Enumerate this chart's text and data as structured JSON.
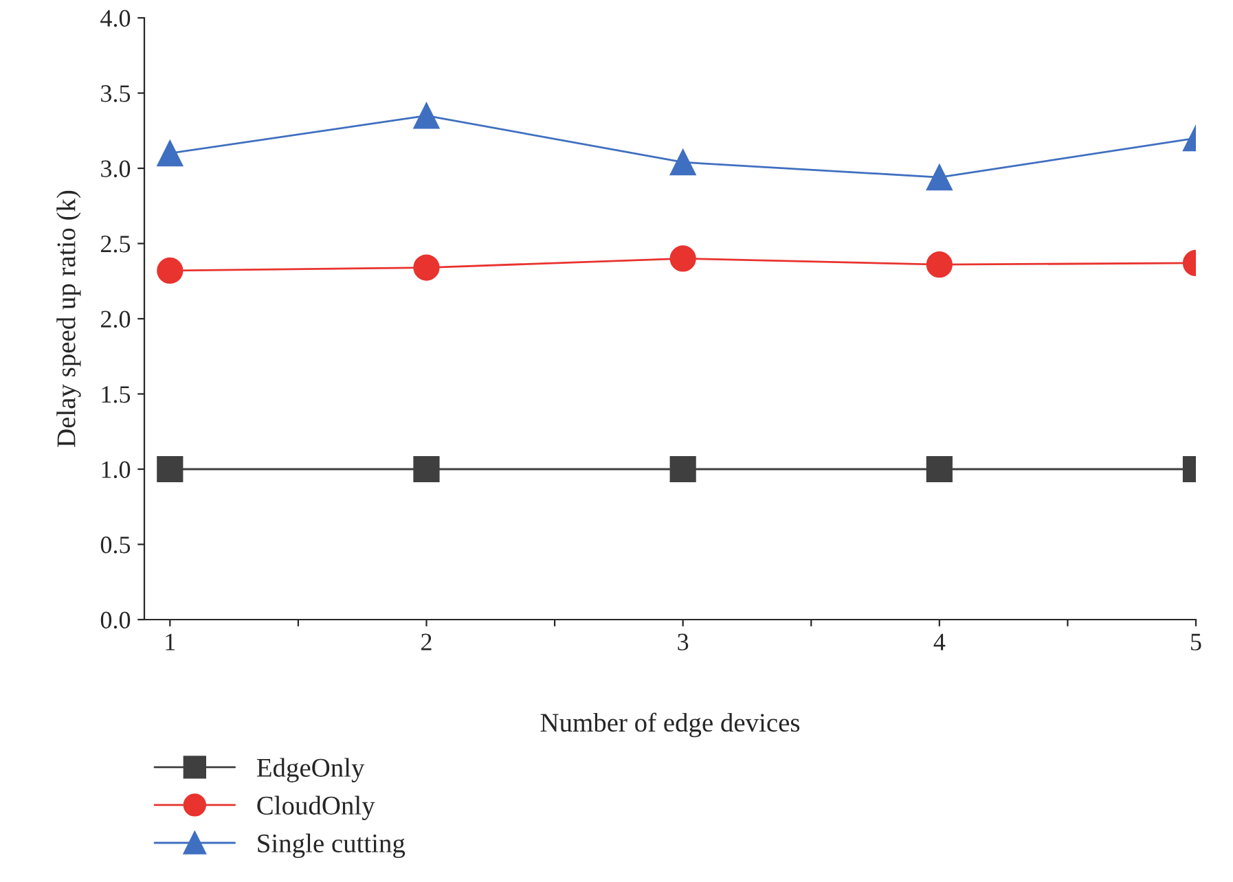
{
  "chart_data": {
    "type": "line",
    "xlabel": "Number of edge devices",
    "ylabel": "Delay speed up ratio (k)",
    "x": [
      1,
      2,
      3,
      4,
      5
    ],
    "series": [
      {
        "name": "EdgeOnly",
        "color": "#3f3f3f",
        "marker": "square",
        "values": [
          1.0,
          1.0,
          1.0,
          1.0,
          1.0
        ]
      },
      {
        "name": "CloudOnly",
        "color": "#e8332f",
        "marker": "circle",
        "values": [
          2.32,
          2.34,
          2.4,
          2.36,
          2.37
        ]
      },
      {
        "name": "Single cutting",
        "color": "#3f6fc0",
        "marker": "triangle",
        "values": [
          3.1,
          3.35,
          3.04,
          2.94,
          3.2
        ]
      }
    ],
    "xlim": [
      0.9,
      5
    ],
    "ylim": [
      0,
      4
    ],
    "xticks": [
      1,
      {
        "value": 1.5,
        "label": null
      },
      2,
      {
        "value": 2.5,
        "label": null
      },
      3,
      {
        "value": 3.5,
        "label": null
      },
      4,
      {
        "value": 4.5,
        "label": null
      },
      5
    ],
    "yticks": [
      {
        "value": 0,
        "label": "0.0"
      },
      0.5,
      {
        "value": 1,
        "label": "1.0"
      },
      1.5,
      {
        "value": 2,
        "label": "2.0"
      },
      2.5,
      {
        "value": 3,
        "label": "3.0"
      },
      3.5,
      {
        "value": 4,
        "label": "4.0"
      }
    ],
    "grid": false,
    "legend": "bottom",
    "line_style": "solid"
  }
}
